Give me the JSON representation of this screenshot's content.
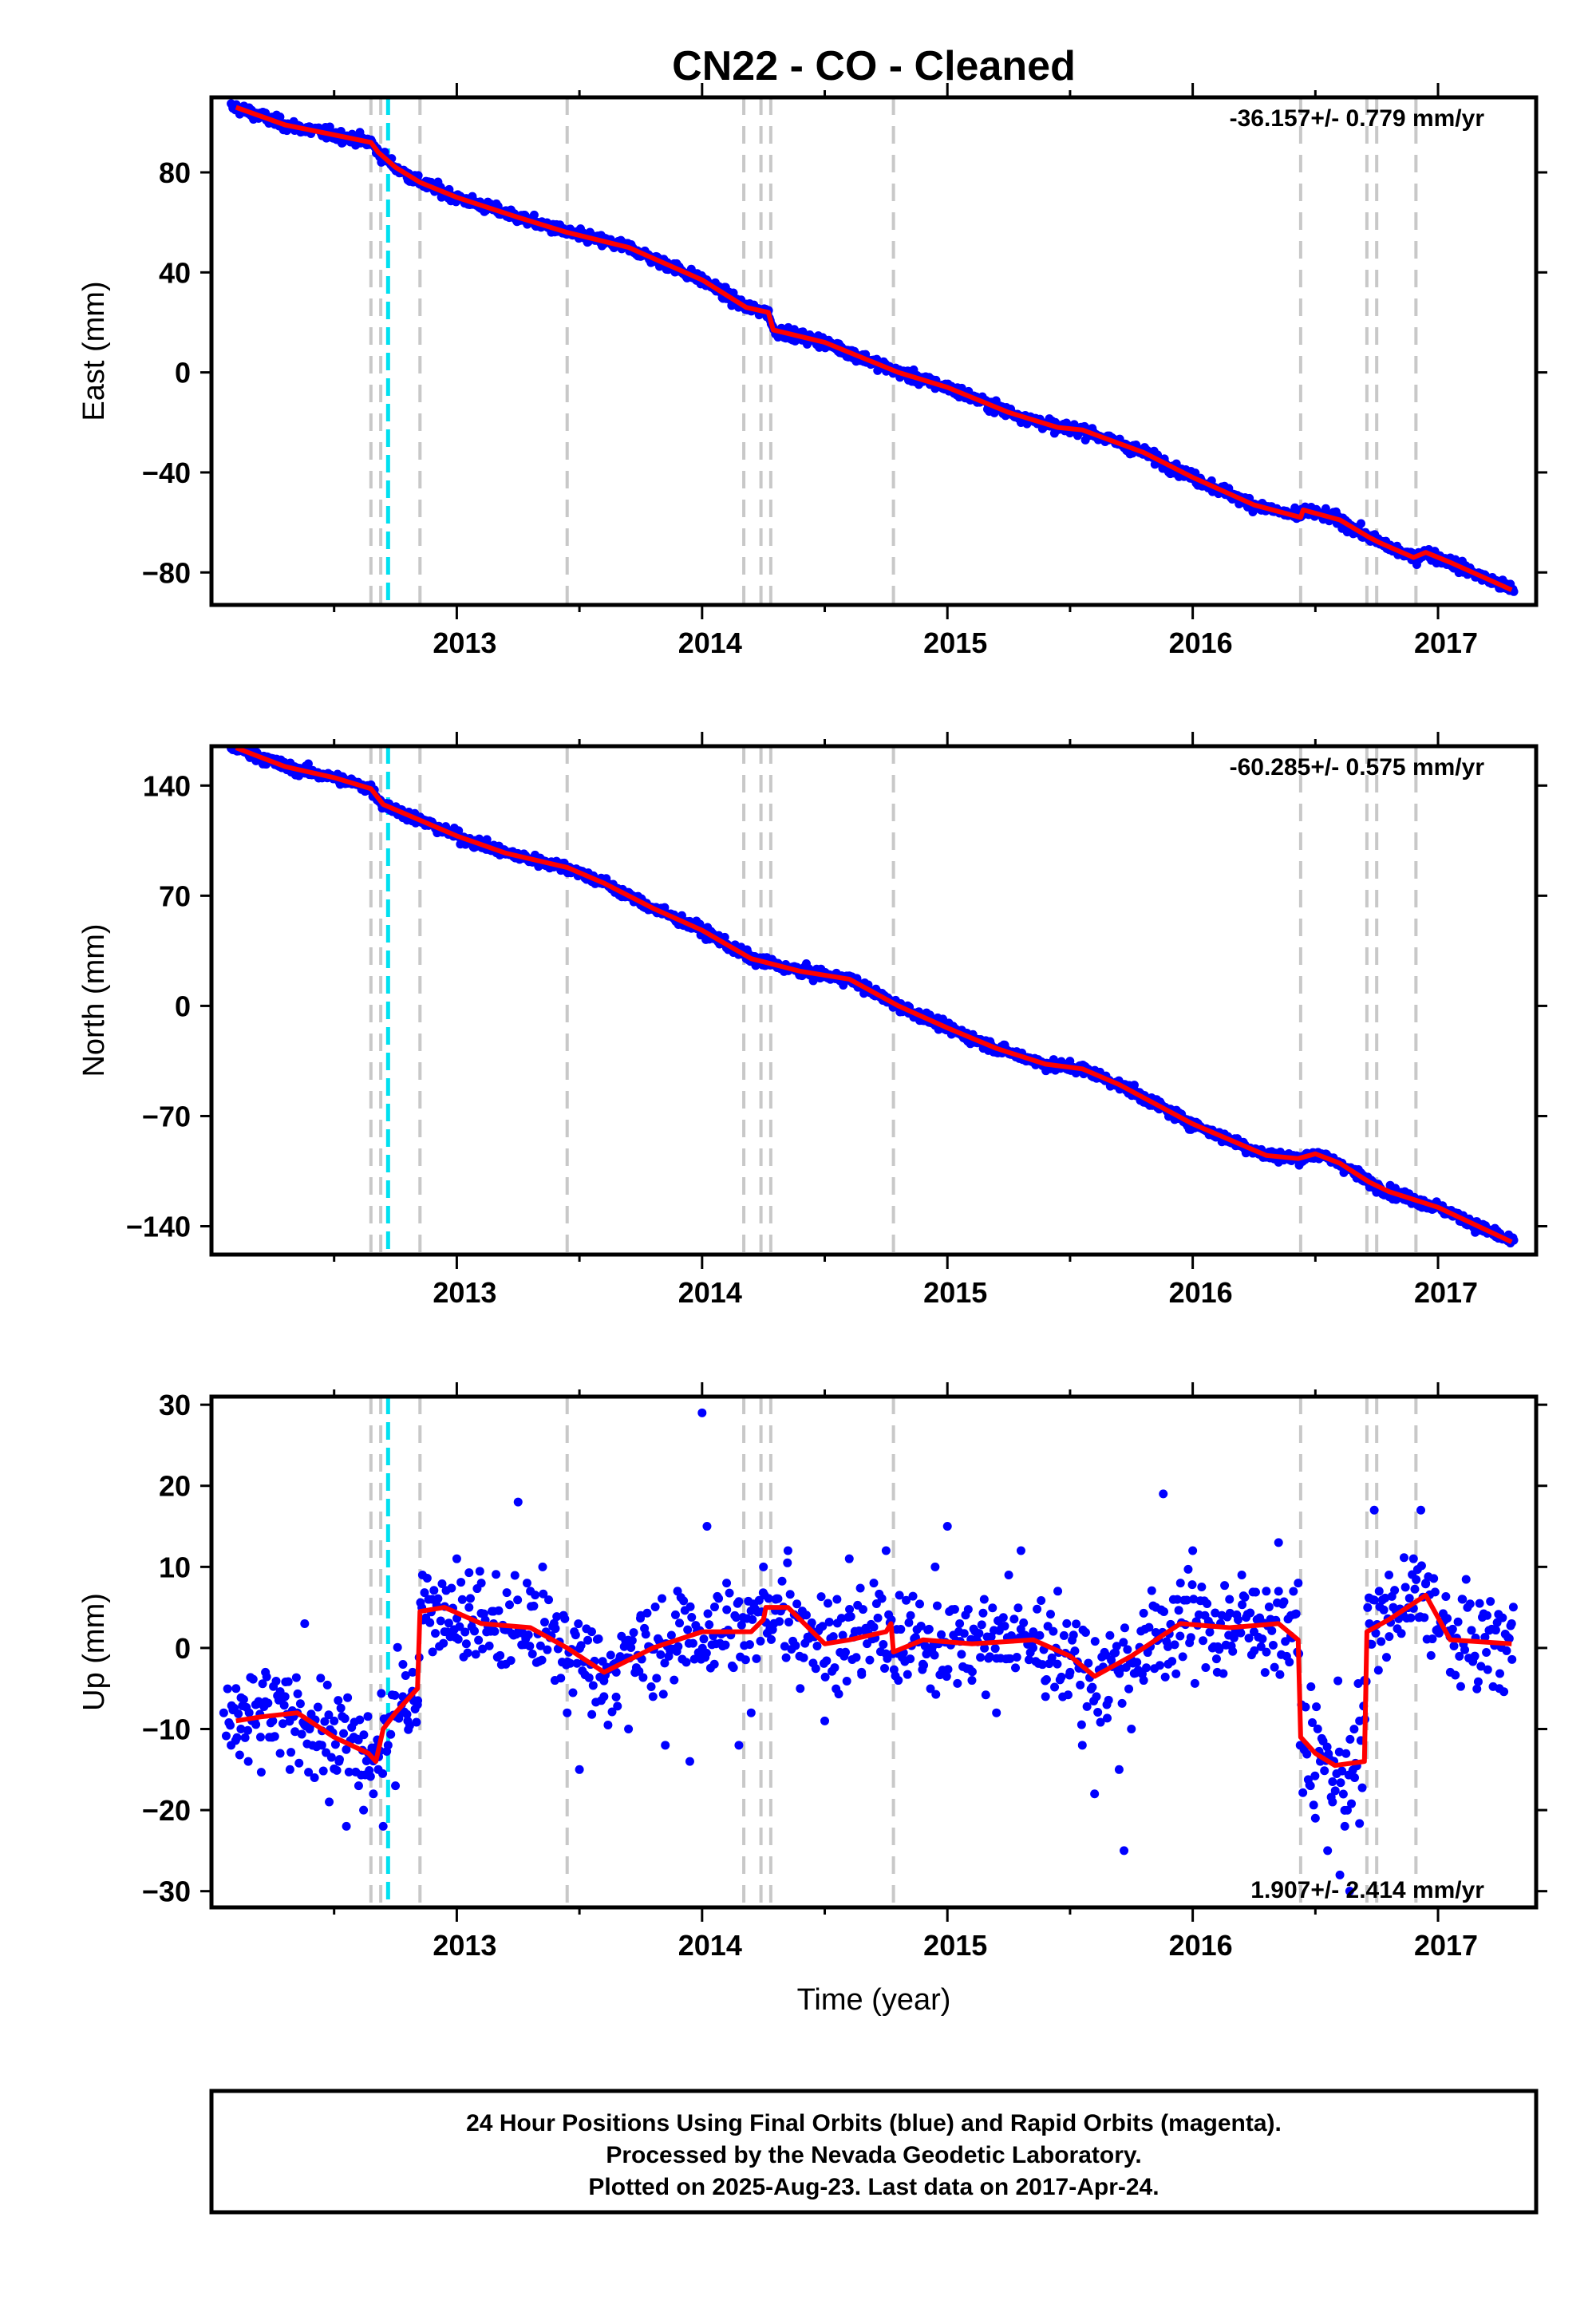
{
  "title": "CN22  - CO - Cleaned",
  "colors": {
    "final_orbits": "#0000ff",
    "model_fit": "#ff0000",
    "event_gray": "#c8c8c8",
    "event_cyan": "#00e0f0"
  },
  "chart_data": [
    {
      "type": "scatter",
      "ylabel": "East (mm)",
      "xlim": [
        2012.0,
        2017.4
      ],
      "ylim": [
        -93,
        110
      ],
      "yticks": [
        -80,
        -40,
        0,
        40,
        80
      ],
      "xticks": [
        2013,
        2014,
        2015,
        2016,
        2017
      ],
      "rate_label": "-36.157+/- 0.779 mm/yr",
      "fit": {
        "x": [
          2012.1,
          2012.3,
          2012.5,
          2012.65,
          2012.68,
          2012.75,
          2012.85,
          2013.0,
          2013.25,
          2013.45,
          2013.7,
          2014.0,
          2014.18,
          2014.27,
          2014.29,
          2014.5,
          2014.8,
          2015.0,
          2015.25,
          2015.45,
          2015.55,
          2015.8,
          2016.0,
          2016.25,
          2016.44,
          2016.45,
          2016.6,
          2016.72,
          2016.76,
          2016.9,
          2016.95,
          2017.05,
          2017.3
        ],
        "y": [
          106,
          99,
          95,
          92,
          88,
          82,
          76,
          70,
          62,
          56,
          50,
          37,
          26,
          24,
          17,
          12,
          0,
          -6,
          -16,
          -22,
          -23,
          -32,
          -42,
          -53,
          -58,
          -55,
          -59,
          -66,
          -68,
          -74,
          -72,
          -76,
          -87
        ]
      }
    },
    {
      "type": "scatter",
      "ylabel": "North (mm)",
      "xlim": [
        2012.0,
        2017.4
      ],
      "ylim": [
        -158,
        165
      ],
      "yticks": [
        -140,
        -70,
        0,
        70,
        140
      ],
      "xticks": [
        2013,
        2014,
        2015,
        2016,
        2017
      ],
      "rate_label": "-60.285+/- 0.575 mm/yr",
      "fit": {
        "x": [
          2012.1,
          2012.3,
          2012.5,
          2012.65,
          2012.7,
          2012.85,
          2013.0,
          2013.2,
          2013.45,
          2013.6,
          2013.8,
          2014.0,
          2014.2,
          2014.4,
          2014.6,
          2014.8,
          2015.0,
          2015.2,
          2015.4,
          2015.55,
          2015.7,
          2016.0,
          2016.3,
          2016.43,
          2016.5,
          2016.6,
          2016.72,
          2016.8,
          2017.0,
          2017.3
        ],
        "y": [
          164,
          152,
          145,
          138,
          128,
          118,
          108,
          97,
          88,
          78,
          62,
          48,
          30,
          22,
          17,
          0,
          -14,
          -27,
          -37,
          -40,
          -50,
          -75,
          -95,
          -97,
          -94,
          -100,
          -112,
          -118,
          -128,
          -150
        ]
      }
    },
    {
      "type": "scatter",
      "ylabel": "Up (mm)",
      "xlabel": "Time (year)",
      "xlim": [
        2012.0,
        2017.4
      ],
      "ylim": [
        -32,
        31
      ],
      "yticks": [
        -30,
        -20,
        -10,
        0,
        10,
        20,
        30
      ],
      "xticks": [
        2013,
        2014,
        2015,
        2016,
        2017
      ],
      "rate_label": "1.907+/- 2.414 mm/yr",
      "fit": {
        "x": [
          2012.1,
          2012.2,
          2012.35,
          2012.5,
          2012.64,
          2012.67,
          2012.7,
          2012.75,
          2012.84,
          2012.85,
          2012.95,
          2013.1,
          2013.3,
          2013.45,
          2013.6,
          2013.8,
          2014.0,
          2014.2,
          2014.25,
          2014.26,
          2014.35,
          2014.5,
          2014.6,
          2014.75,
          2014.77,
          2014.78,
          2014.9,
          2015.1,
          2015.35,
          2015.5,
          2015.6,
          2015.75,
          2015.95,
          2016.15,
          2016.35,
          2016.43,
          2016.44,
          2016.5,
          2016.58,
          2016.7,
          2016.71,
          2016.8,
          2016.9,
          2016.95,
          2017.05,
          2017.3
        ],
        "y": [
          -9,
          -8.5,
          -8,
          -11,
          -13,
          -14,
          -10,
          -8,
          -5,
          4.5,
          5,
          3,
          2.5,
          0,
          -3,
          0,
          2,
          2,
          3.5,
          5,
          5,
          0.5,
          1,
          2,
          3,
          -0.5,
          1,
          0.5,
          1,
          -1,
          -3.5,
          -1,
          3,
          2.5,
          3,
          1,
          -11,
          -13,
          -14.5,
          -14,
          2,
          3.5,
          5.5,
          6.5,
          1,
          0.5
        ]
      },
      "points": [
        [
          2012.05,
          -8
        ],
        [
          2012.08,
          -12
        ],
        [
          2012.1,
          -5
        ],
        [
          2012.12,
          -10
        ],
        [
          2012.15,
          -14
        ],
        [
          2012.18,
          -7
        ],
        [
          2012.2,
          -11
        ],
        [
          2012.22,
          -3
        ],
        [
          2012.25,
          -9
        ],
        [
          2012.28,
          -13
        ],
        [
          2012.3,
          -6
        ],
        [
          2012.32,
          -15
        ],
        [
          2012.35,
          -8
        ],
        [
          2012.38,
          3
        ],
        [
          2012.4,
          -10
        ],
        [
          2012.42,
          -16
        ],
        [
          2012.45,
          -12
        ],
        [
          2012.48,
          -19
        ],
        [
          2012.5,
          -9
        ],
        [
          2012.52,
          -14
        ],
        [
          2012.55,
          -22
        ],
        [
          2012.58,
          -11
        ],
        [
          2012.6,
          -17
        ],
        [
          2012.62,
          -20
        ],
        [
          2012.64,
          -13
        ],
        [
          2012.66,
          -18
        ],
        [
          2012.68,
          -15
        ],
        [
          2012.7,
          -22
        ],
        [
          2012.72,
          -12
        ],
        [
          2012.75,
          -17
        ],
        [
          2012.78,
          -6
        ],
        [
          2012.8,
          -9
        ],
        [
          2012.82,
          -3
        ],
        [
          2012.84,
          -7
        ],
        [
          2012.86,
          9
        ],
        [
          2012.9,
          6
        ],
        [
          2012.95,
          2
        ],
        [
          2013.0,
          11
        ],
        [
          2013.05,
          5
        ],
        [
          2013.1,
          8
        ],
        [
          2013.15,
          3
        ],
        [
          2013.2,
          -2
        ],
        [
          2013.25,
          18
        ],
        [
          2013.3,
          7
        ],
        [
          2013.35,
          10
        ],
        [
          2013.4,
          -4
        ],
        [
          2013.45,
          -8
        ],
        [
          2013.5,
          -15
        ],
        [
          2013.55,
          2
        ],
        [
          2013.6,
          -6
        ],
        [
          2013.65,
          -3
        ],
        [
          2013.7,
          -10
        ],
        [
          2013.75,
          4
        ],
        [
          2013.8,
          -6
        ],
        [
          2013.85,
          -12
        ],
        [
          2013.9,
          7
        ],
        [
          2013.95,
          -14
        ],
        [
          2014.0,
          29
        ],
        [
          2014.02,
          15
        ],
        [
          2014.05,
          -2
        ],
        [
          2014.1,
          8
        ],
        [
          2014.15,
          -12
        ],
        [
          2014.2,
          -8
        ],
        [
          2014.25,
          10
        ],
        [
          2014.3,
          6
        ],
        [
          2014.35,
          12
        ],
        [
          2014.4,
          -5
        ],
        [
          2014.45,
          2
        ],
        [
          2014.5,
          -9
        ],
        [
          2014.55,
          6
        ],
        [
          2014.6,
          11
        ],
        [
          2014.65,
          -3
        ],
        [
          2014.7,
          8
        ],
        [
          2014.75,
          12
        ],
        [
          2014.8,
          -4
        ],
        [
          2014.85,
          4
        ],
        [
          2014.9,
          -2
        ],
        [
          2014.95,
          10
        ],
        [
          2015.0,
          15
        ],
        [
          2015.05,
          3
        ],
        [
          2015.1,
          -4
        ],
        [
          2015.15,
          6
        ],
        [
          2015.2,
          -8
        ],
        [
          2015.25,
          9
        ],
        [
          2015.3,
          12
        ],
        [
          2015.35,
          2
        ],
        [
          2015.4,
          -6
        ],
        [
          2015.45,
          7
        ],
        [
          2015.5,
          -3
        ],
        [
          2015.55,
          -12
        ],
        [
          2015.6,
          -18
        ],
        [
          2015.65,
          -7
        ],
        [
          2015.7,
          -15
        ],
        [
          2015.72,
          -25
        ],
        [
          2015.75,
          -10
        ],
        [
          2015.8,
          -4
        ],
        [
          2015.85,
          5
        ],
        [
          2015.88,
          19
        ],
        [
          2015.9,
          -2
        ],
        [
          2015.95,
          8
        ],
        [
          2016.0,
          12
        ],
        [
          2016.05,
          4
        ],
        [
          2016.1,
          -3
        ],
        [
          2016.15,
          6
        ],
        [
          2016.2,
          9
        ],
        [
          2016.25,
          2
        ],
        [
          2016.3,
          7
        ],
        [
          2016.35,
          13
        ],
        [
          2016.4,
          4
        ],
        [
          2016.43,
          8
        ],
        [
          2016.45,
          -12
        ],
        [
          2016.48,
          -17
        ],
        [
          2016.5,
          -21
        ],
        [
          2016.52,
          -14
        ],
        [
          2016.55,
          -25
        ],
        [
          2016.57,
          -19
        ],
        [
          2016.6,
          -28
        ],
        [
          2016.62,
          -22
        ],
        [
          2016.64,
          -30
        ],
        [
          2016.66,
          -16
        ],
        [
          2016.68,
          -9
        ],
        [
          2016.7,
          -4
        ],
        [
          2016.72,
          3
        ],
        [
          2016.74,
          17
        ],
        [
          2016.76,
          7
        ],
        [
          2016.8,
          9
        ],
        [
          2016.85,
          4
        ],
        [
          2016.9,
          11
        ],
        [
          2016.93,
          17
        ],
        [
          2016.95,
          8
        ],
        [
          2017.0,
          2
        ],
        [
          2017.05,
          -3
        ],
        [
          2017.1,
          6
        ],
        [
          2017.15,
          -1
        ],
        [
          2017.2,
          4
        ],
        [
          2017.25,
          -5
        ],
        [
          2017.3,
          3
        ]
      ]
    }
  ],
  "event_lines": {
    "gray": [
      2012.65,
      2012.69,
      2012.85,
      2013.45,
      2014.17,
      2014.24,
      2014.28,
      2014.78,
      2016.44,
      2016.71,
      2016.75,
      2016.91
    ],
    "cyan": [
      2012.72
    ]
  },
  "footer": {
    "line1": "24 Hour Positions Using Final Orbits (blue) and Rapid Orbits (magenta).",
    "line2": "Processed by the Nevada Geodetic Laboratory.",
    "line3": "Plotted on 2025-Aug-23. Last data on 2017-Apr-24."
  }
}
